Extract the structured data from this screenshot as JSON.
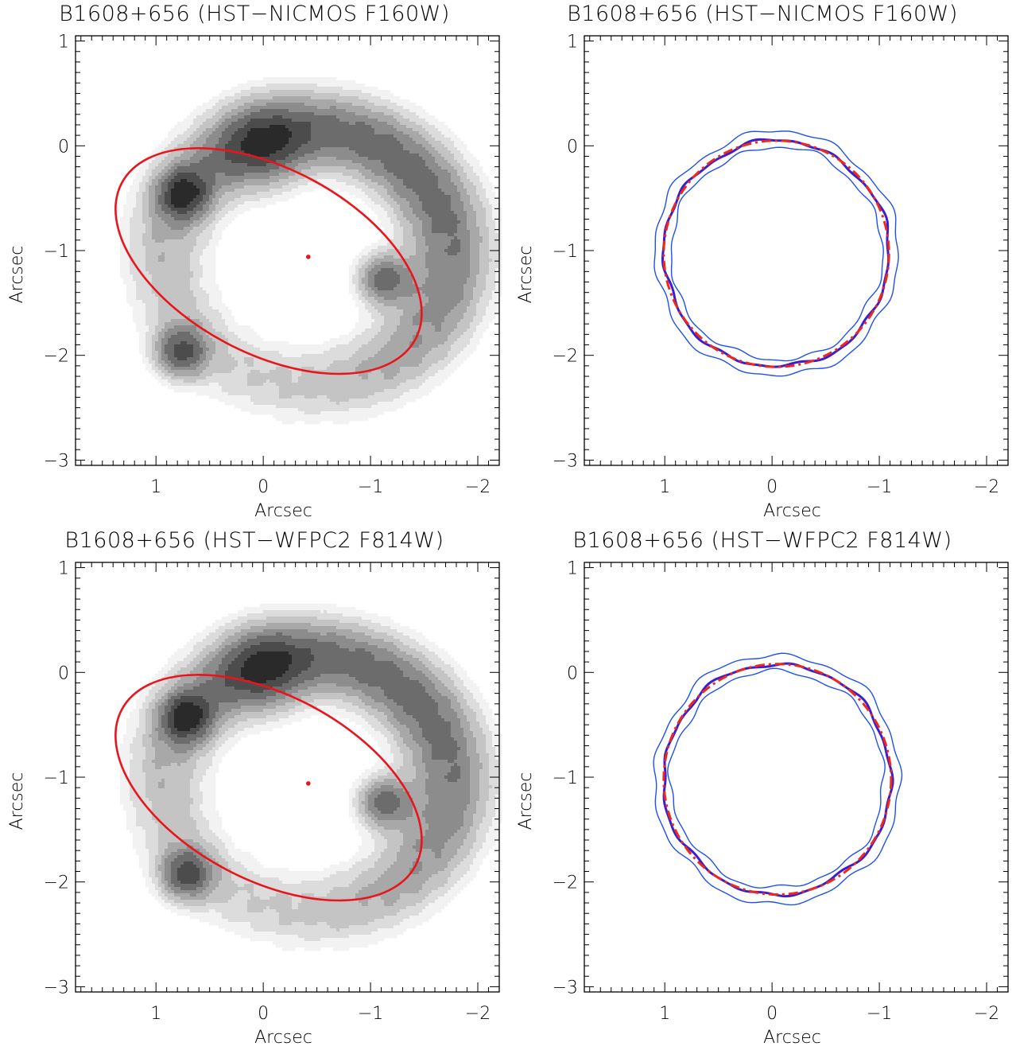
{
  "chart_data": [
    {
      "type": "contour",
      "title": "B1608+656 (HST−NICMOS F160W)",
      "xlabel": "Arcsec",
      "ylabel": "Arcsec",
      "xlim": [
        1.75,
        -2.2
      ],
      "ylim": [
        -3.05,
        1.05
      ],
      "xticks": [
        1,
        0,
        -1,
        -2
      ],
      "yticks": [
        1,
        0,
        -1,
        -2,
        -3
      ],
      "xtick_labels": [
        "1",
        "0",
        "−1",
        "−2"
      ],
      "ytick_labels": [
        "1",
        "0",
        "−1",
        "−2",
        "−3"
      ],
      "image_peaks": [
        {
          "x": 0.77,
          "y": -1.97
        },
        {
          "x": 0.75,
          "y": -0.46
        },
        {
          "x": -1.12,
          "y": -1.27
        },
        {
          "x": 0.0,
          "y": -0.02
        }
      ],
      "lens_center": {
        "x": -0.42,
        "y": -1.06
      },
      "critical_curve_color": "#e8161c"
    },
    {
      "type": "line",
      "title": "B1608+656 (HST−NICMOS F160W)",
      "xlabel": "Arcsec",
      "ylabel": "Arcsec",
      "xlim": [
        1.75,
        -2.2
      ],
      "ylim": [
        -3.05,
        1.05
      ],
      "xticks": [
        1,
        0,
        -1,
        -2
      ],
      "yticks": [
        1,
        0,
        -1,
        -2,
        -3
      ],
      "xtick_labels": [
        "1",
        "0",
        "−1",
        "−2"
      ],
      "ytick_labels": [
        "1",
        "0",
        "−1",
        "−2",
        "−3"
      ],
      "ring_center": {
        "x": -0.04,
        "y": -1.03
      },
      "ring_radius_x": 1.05,
      "ring_radius_y": 1.08,
      "series_colors": {
        "inner": "#2050f0",
        "mean": "#3a1fd0",
        "outer": "#2050f0",
        "model": "#f0281c"
      }
    },
    {
      "type": "contour",
      "title": "B1608+656 (HST−WFPC2 F814W)",
      "xlabel": "Arcsec",
      "ylabel": "Arcsec",
      "xlim": [
        1.75,
        -2.2
      ],
      "ylim": [
        -3.05,
        1.05
      ],
      "xticks": [
        1,
        0,
        -1,
        -2
      ],
      "yticks": [
        1,
        0,
        -1,
        -2,
        -3
      ],
      "xtick_labels": [
        "1",
        "0",
        "−1",
        "−2"
      ],
      "ytick_labels": [
        "1",
        "0",
        "−1",
        "−2",
        "−3"
      ],
      "image_peaks": [
        {
          "x": 0.72,
          "y": -1.93
        },
        {
          "x": 0.72,
          "y": -0.43
        },
        {
          "x": -1.12,
          "y": -1.24
        },
        {
          "x": 0.0,
          "y": 0.0
        }
      ],
      "lens_center": {
        "x": -0.42,
        "y": -1.06
      },
      "critical_curve_color": "#e8161c"
    },
    {
      "type": "line",
      "title": "B1608+656 (HST−WFPC2 F814W)",
      "xlabel": "Arcsec",
      "ylabel": "Arcsec",
      "xlim": [
        1.75,
        -2.2
      ],
      "ylim": [
        -3.05,
        1.05
      ],
      "xticks": [
        1,
        0,
        -1,
        -2
      ],
      "yticks": [
        1,
        0,
        -1,
        -2,
        -3
      ],
      "xtick_labels": [
        "1",
        "0",
        "−1",
        "−2"
      ],
      "ytick_labels": [
        "1",
        "0",
        "−1",
        "−2",
        "−3"
      ],
      "ring_center": {
        "x": -0.05,
        "y": -1.02
      },
      "ring_radius_x": 1.06,
      "ring_radius_y": 1.1,
      "series_colors": {
        "inner": "#2050f0",
        "mean": "#3a1fd0",
        "outer": "#2050f0",
        "model": "#f0281c"
      }
    }
  ]
}
